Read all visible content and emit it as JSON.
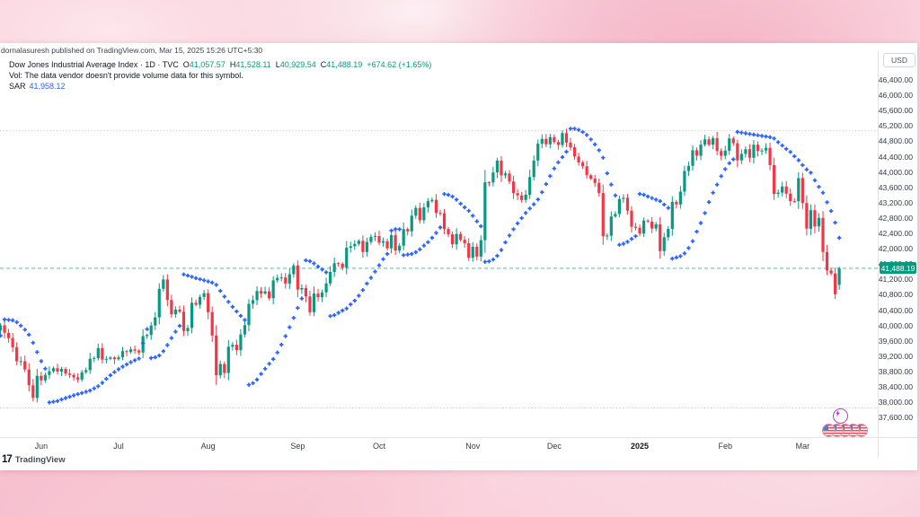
{
  "watermark": "dornalasuresh published on TradingView.com, Mar 15, 2025 15:26 UTC+5:30",
  "legend": {
    "symbol_line": "Dow Jones Industrial Average Index · 1D · TVC",
    "ohlc": [
      {
        "k": "O",
        "v": "41,057.57"
      },
      {
        "k": "H",
        "v": "41,528.11"
      },
      {
        "k": "L",
        "v": "40,929.54"
      },
      {
        "k": "C",
        "v": "41,488.19"
      }
    ],
    "change": "+674.62 (+1.65%)",
    "vol_message": "Vol: The data vendor doesn't provide volume data for this symbol.",
    "sar_label": "SAR",
    "sar_value": "41,958.12"
  },
  "price_axis": {
    "currency": "USD",
    "tick_values": [
      46400,
      46000,
      45600,
      45200,
      44800,
      44400,
      44000,
      43600,
      43200,
      42800,
      42400,
      42000,
      41600,
      41200,
      40800,
      40400,
      40000,
      39600,
      39200,
      38800,
      38400,
      38000,
      37600
    ],
    "last_price": "41,488.19"
  },
  "time_axis": {
    "ticks": [
      {
        "label": "Jun",
        "i": 11
      },
      {
        "label": "Jul",
        "i": 30
      },
      {
        "label": "Aug",
        "i": 52
      },
      {
        "label": "Sep",
        "i": 74
      },
      {
        "label": "Oct",
        "i": 94
      },
      {
        "label": "Nov",
        "i": 117
      },
      {
        "label": "Dec",
        "i": 137
      },
      {
        "label": "2025",
        "i": 158,
        "bold": true
      },
      {
        "label": "Feb",
        "i": 179
      },
      {
        "label": "Mar",
        "i": 198
      }
    ]
  },
  "footer": {
    "logo_mark": "17",
    "logo_name": "TradingView"
  },
  "badges": {
    "boost": "lightning",
    "reaction": "us-flag",
    "reaction_count": 5
  },
  "chart_data": {
    "type": "candlestick",
    "title": "Dow Jones Industrial Average Index",
    "interval": "1D",
    "exchange": "TVC",
    "indicator": "Parabolic SAR",
    "sar_last": 41958.12,
    "ylim": [
      37400,
      46600
    ],
    "grid": "off",
    "range_high_line": 45073,
    "range_low_line": 37850,
    "current_price": 41488.19,
    "last_candle": {
      "o": 41057.57,
      "h": 41528.11,
      "l": 40929.54,
      "c": 41488.19
    },
    "closes": [
      39869,
      40004,
      39807,
      39671,
      39431,
      39065,
      39069,
      38853,
      38441,
      38111,
      38686,
      38571,
      38711,
      38807,
      38886,
      38798,
      38868,
      38747,
      38712,
      38647,
      38589,
      38778,
      38835,
      39134,
      39150,
      39411,
      39112,
      39128,
      39164,
      39119,
      39170,
      39332,
      39308,
      39376,
      39344,
      39292,
      39721,
      39754,
      40001,
      40211,
      40954,
      41198,
      40665,
      40288,
      40415,
      40358,
      39854,
      39935,
      40589,
      40540,
      40743,
      40843,
      40347,
      39737,
      38703,
      38997,
      38763,
      39446,
      39498,
      39357,
      39766,
      40008,
      40563,
      40660,
      40897,
      40834,
      40890,
      40713,
      41175,
      41240,
      41251,
      41091,
      41335,
      41563,
      40937,
      40974,
      40756,
      40345,
      40830,
      40737,
      40861,
      41097,
      41394,
      41622,
      41606,
      41503,
      42025,
      42063,
      42124,
      42208,
      41914,
      42175,
      42313,
      42330,
      42157,
      42197,
      42012,
      42353,
      41954,
      42080,
      42512,
      42454,
      42864,
      43065,
      42740,
      43078,
      43239,
      43276,
      42931,
      42925,
      42515,
      42374,
      42114,
      42387,
      42233,
      42142,
      41763,
      42052,
      41795,
      42222,
      43730,
      43729,
      43989,
      44294,
      43911,
      43958,
      43751,
      43445,
      43390,
      43269,
      43408,
      43870,
      44297,
      44737,
      44860,
      44722,
      44911,
      44782,
      44706,
      45014,
      44766,
      44643,
      44402,
      44248,
      44149,
      43914,
      43828,
      43717,
      43450,
      42327,
      42342,
      42840,
      42906,
      43297,
      43326,
      42992,
      42573,
      42544,
      42392,
      42732,
      42707,
      42528,
      42635,
      41938,
      42297,
      42518,
      43222,
      43153,
      43488,
      44026,
      44157,
      44565,
      44424,
      44714,
      44850,
      44713,
      44882,
      44545,
      44421,
      44556,
      44873,
      44748,
      44303,
      44470,
      44593,
      44369,
      44711,
      44546,
      44557,
      44627,
      44177,
      43428,
      43461,
      43621,
      43433,
      43240,
      43239,
      43841,
      43191,
      42521,
      43007,
      42579,
      42802,
      41912,
      41433,
      41351,
      40814,
      41488.19
    ],
    "colors": {
      "up": "#089981",
      "down": "#f23645",
      "sar": "#2962ff",
      "price_line": "#089981",
      "range_line": "#a6a9b3"
    }
  }
}
